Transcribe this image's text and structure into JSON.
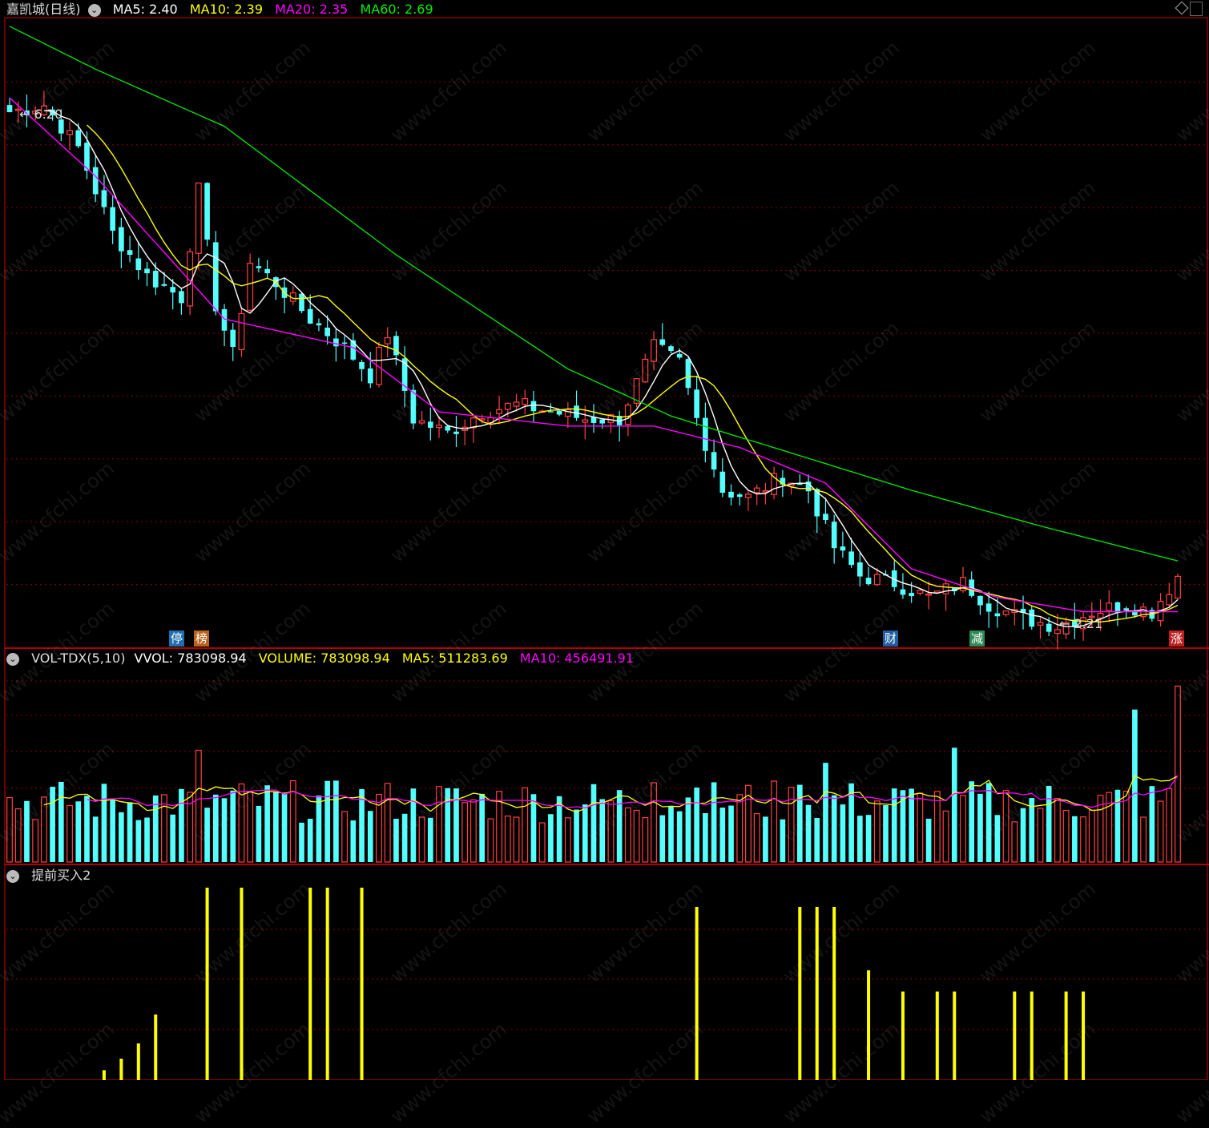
{
  "header": {
    "stock": "嘉凯城(日线)",
    "ma5": "MA5: 2.40",
    "ma10": "MA10: 2.39",
    "ma20": "MA20: 2.35",
    "ma60": "MA60: 2.69"
  },
  "vol_header": {
    "name": "VOL-TDX(5,10)",
    "vvol": "VVOL: 783098.94",
    "volume": "VOLUME: 783098.94",
    "ma5": "MA5: 511283.69",
    "ma10": "MA10: 456491.91"
  },
  "ind_header": {
    "name": "提前买入2"
  },
  "price_annotations": {
    "high": "6.20",
    "low": "2.21"
  },
  "event_tags": [
    {
      "label": "停",
      "color": "#1e90ff"
    },
    {
      "label": "榜",
      "color": "#ff8c00"
    },
    {
      "label": "财",
      "color": "#1e90ff"
    },
    {
      "label": "减",
      "color": "#3cb371"
    },
    {
      "label": "涨",
      "color": "#ff3030"
    }
  ],
  "watermark": "www.cfchi.com",
  "colors": {
    "up": "#ff4040",
    "down": "#54ffff",
    "ma5": "#ffffff",
    "ma10": "#ffff00",
    "ma20": "#ff00ff",
    "ma60": "#00dd00",
    "grid": "#8b0000",
    "signal": "#ffff00"
  },
  "chart_data": {
    "type": "candlestick",
    "price_range": [
      2.1,
      6.5
    ],
    "close_trend": [
      [
        0,
        5.85
      ],
      [
        4,
        5.9
      ],
      [
        8,
        5.6
      ],
      [
        12,
        5.0
      ],
      [
        16,
        4.7
      ],
      [
        20,
        4.55
      ],
      [
        22,
        5.3
      ],
      [
        24,
        4.5
      ],
      [
        26,
        4.15
      ],
      [
        28,
        4.8
      ],
      [
        31,
        4.65
      ],
      [
        35,
        4.4
      ],
      [
        39,
        4.2
      ],
      [
        42,
        4.0
      ],
      [
        44,
        4.3
      ],
      [
        47,
        3.7
      ],
      [
        51,
        3.6
      ],
      [
        55,
        3.75
      ],
      [
        59,
        3.8
      ],
      [
        63,
        3.75
      ],
      [
        67,
        3.7
      ],
      [
        71,
        3.7
      ],
      [
        75,
        4.2
      ],
      [
        78,
        4.1
      ],
      [
        80,
        3.7
      ],
      [
        83,
        3.2
      ],
      [
        86,
        3.15
      ],
      [
        90,
        3.3
      ],
      [
        93,
        3.2
      ],
      [
        96,
        2.8
      ],
      [
        99,
        2.6
      ],
      [
        103,
        2.55
      ],
      [
        107,
        2.45
      ],
      [
        111,
        2.55
      ],
      [
        114,
        2.4
      ],
      [
        118,
        2.3
      ],
      [
        122,
        2.25
      ],
      [
        126,
        2.35
      ],
      [
        130,
        2.4
      ],
      [
        133,
        2.35
      ],
      [
        136,
        2.6
      ]
    ],
    "ma60_trend": [
      [
        0,
        6.45
      ],
      [
        10,
        6.15
      ],
      [
        25,
        5.75
      ],
      [
        45,
        4.85
      ],
      [
        65,
        4.05
      ],
      [
        77,
        3.72
      ],
      [
        90,
        3.48
      ],
      [
        105,
        3.2
      ],
      [
        120,
        2.95
      ],
      [
        137,
        2.69
      ]
    ],
    "ma20_trend": [
      [
        0,
        5.95
      ],
      [
        10,
        5.4
      ],
      [
        25,
        4.4
      ],
      [
        40,
        4.2
      ],
      [
        50,
        3.75
      ],
      [
        65,
        3.65
      ],
      [
        75,
        3.65
      ],
      [
        85,
        3.5
      ],
      [
        95,
        3.25
      ],
      [
        105,
        2.65
      ],
      [
        115,
        2.45
      ],
      [
        125,
        2.35
      ],
      [
        137,
        2.35
      ]
    ],
    "vol_indicator_max": 1000000,
    "signal_bars": [
      [
        11,
        0.05
      ],
      [
        13,
        0.11
      ],
      [
        15,
        0.19
      ],
      [
        17,
        0.34
      ],
      [
        23,
        1.0
      ],
      [
        27,
        1.0
      ],
      [
        35,
        1.0
      ],
      [
        37,
        1.0
      ],
      [
        41,
        1.0
      ],
      [
        80,
        0.9
      ],
      [
        92,
        0.9
      ],
      [
        94,
        0.9
      ],
      [
        96,
        0.9
      ],
      [
        100,
        0.57
      ],
      [
        104,
        0.46
      ],
      [
        108,
        0.46
      ],
      [
        110,
        0.46
      ],
      [
        117,
        0.46
      ],
      [
        119,
        0.46
      ],
      [
        123,
        0.46
      ],
      [
        125,
        0.46
      ]
    ],
    "signal_max": 1.0
  }
}
